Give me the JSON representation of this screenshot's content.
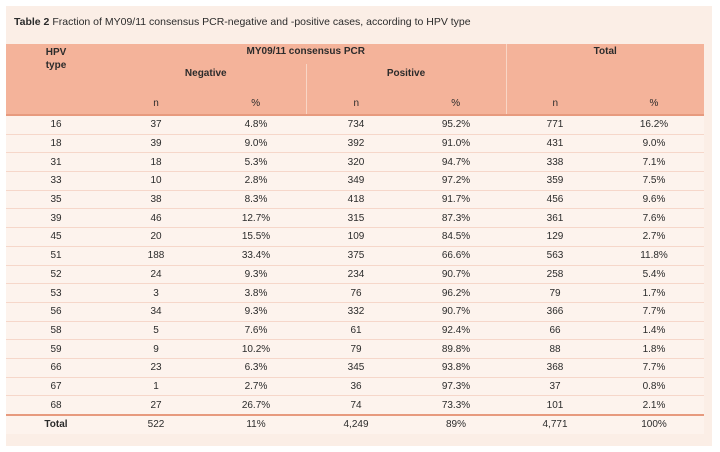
{
  "caption": {
    "label": "Table 2",
    "text": "Fraction of MY09/11 consensus PCR-negative and -positive cases, according to HPV type"
  },
  "header": {
    "hpv_type": "HPV\ntype",
    "group_pcr": "MY09/11 consensus PCR",
    "group_total": "Total",
    "negative": "Negative",
    "positive": "Positive",
    "n": "n",
    "pct": "%"
  },
  "rows": [
    [
      "16",
      "37",
      "4.8%",
      "734",
      "95.2%",
      "771",
      "16.2%"
    ],
    [
      "18",
      "39",
      "9.0%",
      "392",
      "91.0%",
      "431",
      "9.0%"
    ],
    [
      "31",
      "18",
      "5.3%",
      "320",
      "94.7%",
      "338",
      "7.1%"
    ],
    [
      "33",
      "10",
      "2.8%",
      "349",
      "97.2%",
      "359",
      "7.5%"
    ],
    [
      "35",
      "38",
      "8.3%",
      "418",
      "91.7%",
      "456",
      "9.6%"
    ],
    [
      "39",
      "46",
      "12.7%",
      "315",
      "87.3%",
      "361",
      "7.6%"
    ],
    [
      "45",
      "20",
      "15.5%",
      "109",
      "84.5%",
      "129",
      "2.7%"
    ],
    [
      "51",
      "188",
      "33.4%",
      "375",
      "66.6%",
      "563",
      "11.8%"
    ],
    [
      "52",
      "24",
      "9.3%",
      "234",
      "90.7%",
      "258",
      "5.4%"
    ],
    [
      "53",
      "3",
      "3.8%",
      "76",
      "96.2%",
      "79",
      "1.7%"
    ],
    [
      "56",
      "34",
      "9.3%",
      "332",
      "90.7%",
      "366",
      "7.7%"
    ],
    [
      "58",
      "5",
      "7.6%",
      "61",
      "92.4%",
      "66",
      "1.4%"
    ],
    [
      "59",
      "9",
      "10.2%",
      "79",
      "89.8%",
      "88",
      "1.8%"
    ],
    [
      "66",
      "23",
      "6.3%",
      "345",
      "93.8%",
      "368",
      "7.7%"
    ],
    [
      "67",
      "1",
      "2.7%",
      "36",
      "97.3%",
      "37",
      "0.8%"
    ],
    [
      "68",
      "27",
      "26.7%",
      "74",
      "73.3%",
      "101",
      "2.1%"
    ]
  ],
  "total_row": [
    "Total",
    "522",
    "11%",
    "4,249",
    "89%",
    "4,771",
    "100%"
  ]
}
